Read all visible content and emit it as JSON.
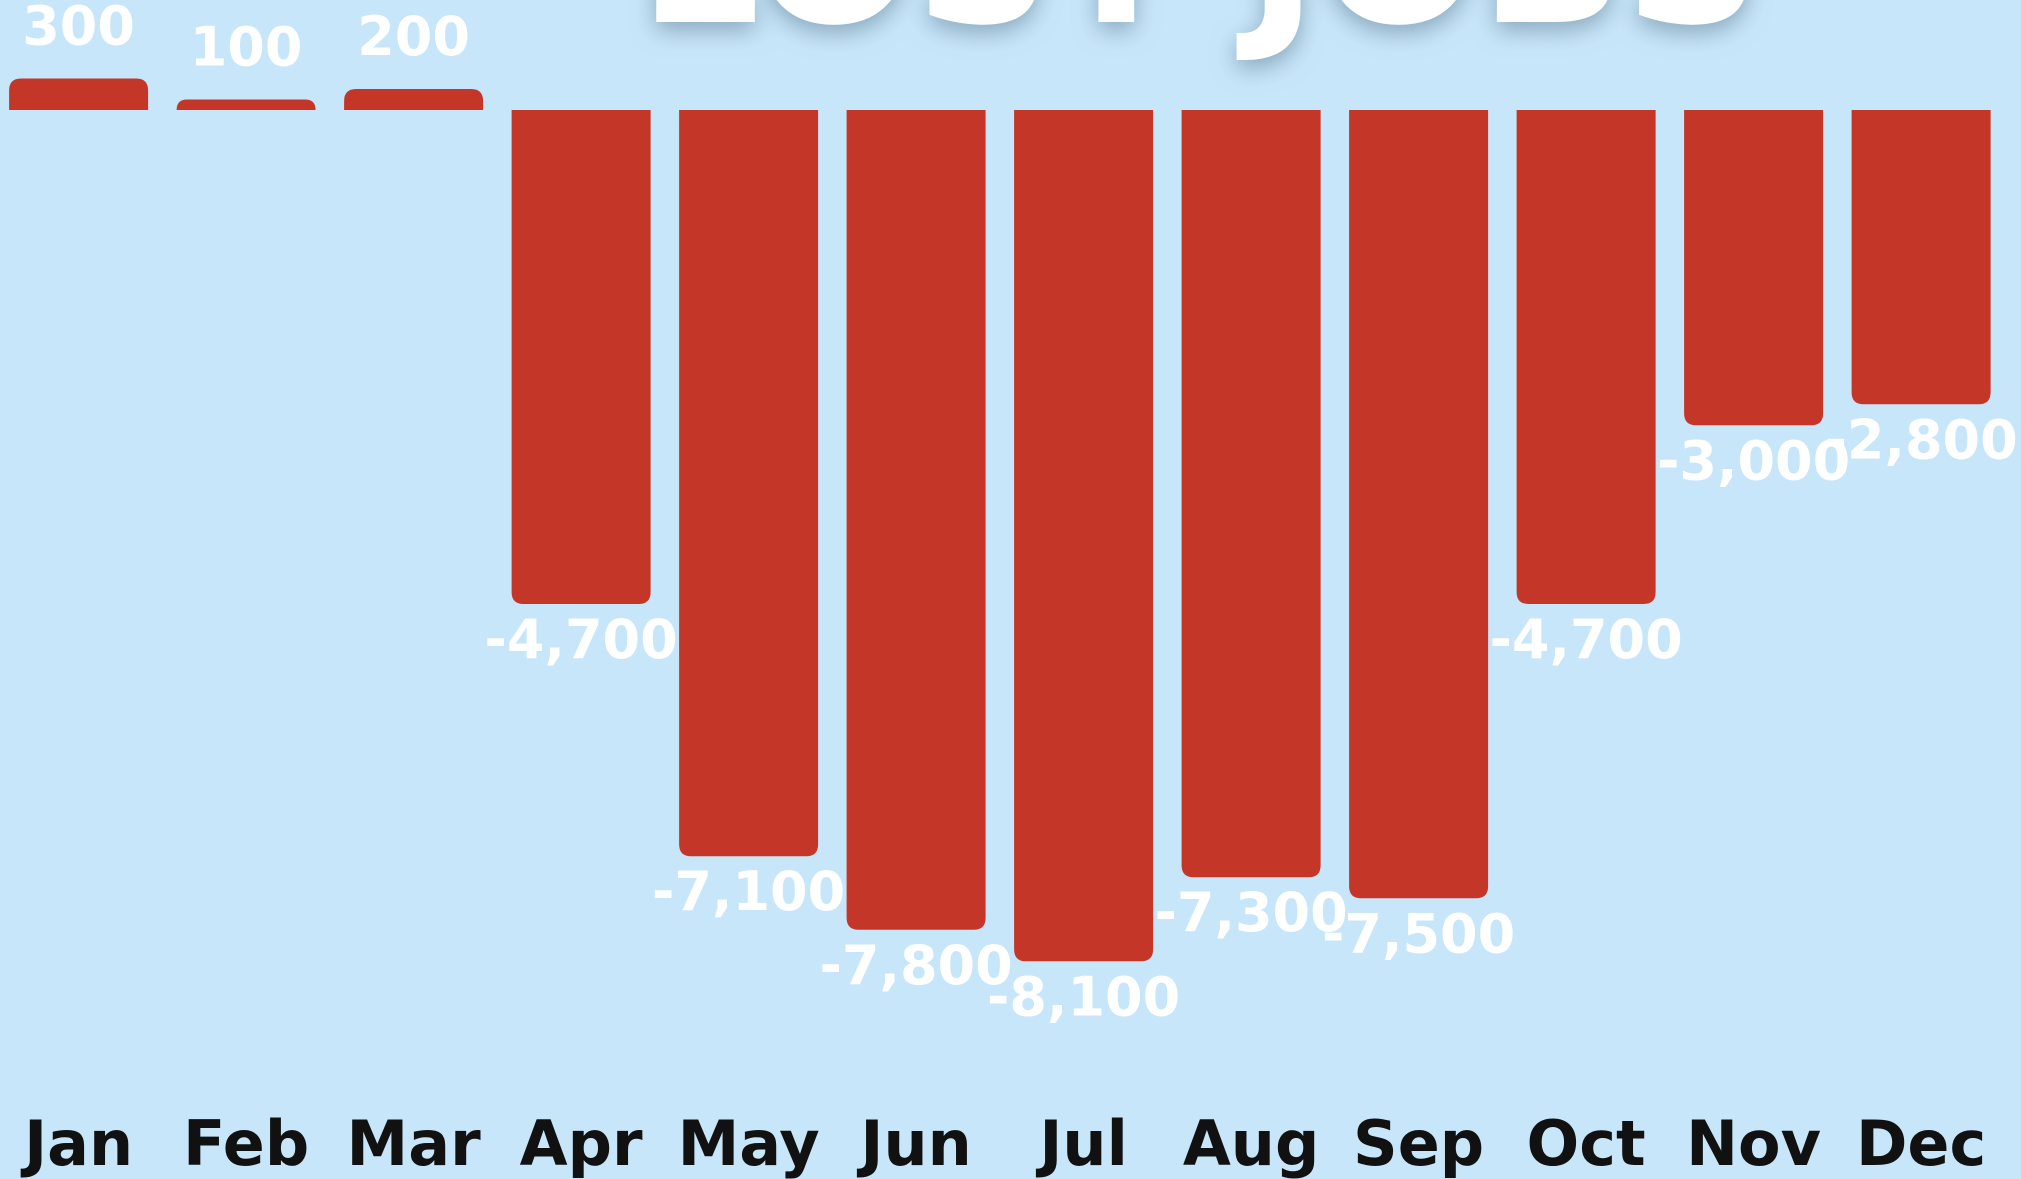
{
  "chart_data": {
    "type": "bar",
    "title": "LOST JOBS",
    "categories": [
      "Jan",
      "Feb",
      "Mar",
      "Apr",
      "May",
      "Jun",
      "Jul",
      "Aug",
      "Sep",
      "Oct",
      "Nov",
      "Dec"
    ],
    "values": [
      300,
      100,
      200,
      -4700,
      -7100,
      -7800,
      -8100,
      -7300,
      -7500,
      -4700,
      -3000,
      -2800
    ],
    "value_labels": [
      "300",
      "100",
      "200",
      "-4,700",
      "-7,100",
      "-7,800",
      "-8,100",
      "-7,300",
      "-7,500",
      "-4,700",
      "-3,000",
      "-2,800"
    ],
    "color": "#c33628"
  }
}
